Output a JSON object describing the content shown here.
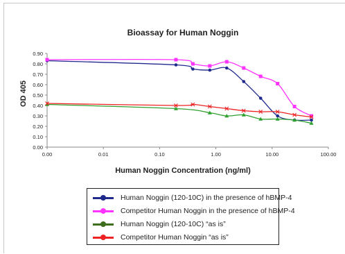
{
  "chart_data": {
    "type": "line",
    "title": "Bioassay for Human Noggin",
    "xlabel": "Human Noggin Concentration (ng/ml)",
    "ylabel": "OD 405",
    "xscale": "log",
    "xlim": [
      0.001,
      100
    ],
    "ylim": [
      0,
      0.9
    ],
    "x_tick_labels": [
      "0.00",
      "0.01",
      "0.10",
      "1.00",
      "10.00",
      "100.00"
    ],
    "y_tick_labels": [
      "0.00",
      "0.10",
      "0.20",
      "0.30",
      "0.40",
      "0.50",
      "0.60",
      "0.70",
      "0.80",
      "0.90"
    ],
    "grid": false,
    "legend_position": "bottom",
    "series": [
      {
        "name": "Human Noggin (120-10C) in the presence of hBMP-4",
        "color": "#1f2a8c",
        "marker": "circle",
        "x": [
          0.001,
          0.195,
          0.39,
          0.78,
          1.56,
          3.125,
          6.25,
          12.5,
          25,
          50
        ],
        "y": [
          0.83,
          0.79,
          0.75,
          0.74,
          0.76,
          0.63,
          0.47,
          0.3,
          0.26,
          0.26
        ]
      },
      {
        "name": "Competitor Human Noggin in the presence of hBMP-4",
        "color": "#ff33ff",
        "marker": "square",
        "x": [
          0.001,
          0.195,
          0.39,
          0.78,
          1.56,
          3.125,
          6.25,
          12.5,
          25,
          50
        ],
        "y": [
          0.84,
          0.84,
          0.8,
          0.78,
          0.82,
          0.76,
          0.68,
          0.61,
          0.39,
          0.3
        ]
      },
      {
        "name": "Human Noggin (120-10C) “as is”",
        "color": "#2ea02e",
        "marker": "triangle",
        "x": [
          0.001,
          0.195,
          0.78,
          1.56,
          3.125,
          6.25,
          12.5,
          25,
          50
        ],
        "y": [
          0.41,
          0.37,
          0.33,
          0.3,
          0.31,
          0.27,
          0.27,
          0.26,
          0.23
        ]
      },
      {
        "name": "Competitor Human Noggin “as is”",
        "color": "#ee2222",
        "marker": "x",
        "x": [
          0.001,
          0.195,
          0.39,
          0.78,
          1.56,
          3.125,
          6.25,
          12.5,
          25,
          50
        ],
        "y": [
          0.42,
          0.4,
          0.41,
          0.39,
          0.37,
          0.35,
          0.34,
          0.34,
          0.31,
          0.29
        ]
      }
    ]
  },
  "legend": [
    {
      "label": "Human Noggin (120-10C) in the presence of hBMP-4",
      "line_color": "#1f2a8c",
      "dot_color": "#1f2a8c"
    },
    {
      "label": "Competitor Human Noggin in the presence of hBMP-4",
      "line_color": "#ff33ff",
      "dot_color": "#ff33ff"
    },
    {
      "label": "Human Noggin (120-10C) “as is”",
      "line_color": "#3c6e1e",
      "dot_color": "#3c6e1e"
    },
    {
      "label": "Competitor Human Noggin “as is”",
      "line_color": "#ee2222",
      "dot_color": "#ee2222"
    }
  ]
}
